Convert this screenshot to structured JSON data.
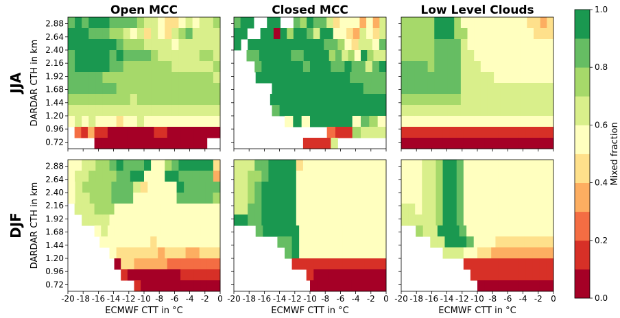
{
  "chart_data": {
    "type": "heatmap",
    "column_titles": [
      "Open MCC",
      "Closed MCC",
      "Low Level Clouds"
    ],
    "row_titles": [
      "JJA",
      "DJF"
    ],
    "xlabel": "ECMWF CTT in °C",
    "ylabel": "DARDAR CTH in km",
    "x_ticks": [
      "-20",
      "-18",
      "-16",
      "-14",
      "-12",
      "-10",
      "-8",
      "-6",
      "-4",
      "-2",
      "0"
    ],
    "y_ticks": [
      "0.72",
      "0.96",
      "1.20",
      "1.44",
      "1.68",
      "1.92",
      "2.16",
      "2.40",
      "2.64",
      "2.88"
    ],
    "xlim": [
      -20,
      0
    ],
    "ylim": [
      0.6,
      3.0
    ],
    "colorbar": {
      "label": "Mixed fraction",
      "ticks": [
        "0.0",
        "0.2",
        "0.4",
        "0.6",
        "0.8",
        "1.0"
      ],
      "levels": [
        0.0,
        0.1,
        0.2,
        0.3,
        0.4,
        0.5,
        0.6,
        0.7,
        0.8,
        0.9,
        1.0
      ],
      "colors": [
        "#a50026",
        "#d73027",
        "#f46d43",
        "#fdae61",
        "#fee08b",
        "#ffffbf",
        "#d9ef8b",
        "#a6d96a",
        "#66bd63",
        "#1a9850"
      ]
    },
    "grid_encoding": "rows listed from top (CTH 2.88 km) to bottom (CTH 0.72 km); columns from CTT -20 °C to 0 °C; each character is the colour bin 0-9 of the mixed fraction, '.' = no data",
    "panels": [
      {
        "row": "JJA",
        "col": "Open MCC",
        "grid": [
          "8989998888766544565667",
          "9998887765646546786666",
          "9999999877766665666666",
          "8999998988887666666776",
          "8999998877777776666667",
          "8888877777777777777776",
          "8888888777777777777777",
          "7777777776777777777777",
          "6666666666666666666666",
          "5656555455655555555555",
          ".2131100000001100000000",
          "....00000000000000000.."
        ]
      },
      {
        "row": "JJA",
        "col": "Closed MCC",
        "grid": [
          "899..99..87988645553536",
          "99..9909799869955436546",
          "9.99999999999887546658",
          "..8899999889999786759766",
          "...8999999899988988689",
          "...999999999999988888",
          ".....999999999999888",
          ".....9999999999999999",
          ".....899999999999999",
          "......595999995875",
          "...........2117666",
          "..........11116......."
        ]
      },
      {
        "row": "JJA",
        "col": "Low Level Clouds",
        "grid": [
          "77777999755555555554434",
          "77777999775555555555444",
          "77777888865555555555555",
          "77777888866555555555555",
          "88887888866655555555555",
          "88888888866666555555555",
          "88888888866666666666666",
          "77777777766666666666666",
          "66666666666666666666666",
          "55555555555555555555555",
          "1111111111111111111111",
          "0000000000000000000000"
        ]
      },
      {
        "row": "DJF",
        "col": "Open MCC",
        "grid": [
          "5566778988895578999994",
          "5667777889955599888883",
          "567777888645555988888",
          "566777888555555888887",
          ".6667775555555555555555",
          "..66665555555555555555",
          "....5655555555555555555",
          ".....5555555545555555555",
          "......5444444344433444",
          ".......0443333322222222",
          "........100000000111111",
          "..........1000000000000"
        ]
      },
      {
        "row": "DJF",
        "col": "Closed MCC",
        "grid": [
          "6668899994555555555555",
          "6677899995555555555555",
          "6678999995555555555555",
          "6678999995555555555555",
          "6688999995555555555555",
          "9988999995555555555555",
          "...899999555555555555",
          "......889555555555555",
          ".......89555555555555",
          "........1111111111111",
          "..........10000000000",
          "...........00000000000"
        ]
      },
      {
        "row": "DJF",
        "col": "Low Level Clouds",
        "grid": [
          "5556679985555555555555",
          "5556679985555555555555",
          "5556679985555555555555",
          "5556679985555555555555",
          "6656679985555555555555",
          "6666679985555555555555",
          "..7669998555555555555",
          "....66999855544444444",
          "......6665544333333333",
          ".........1111111111111",
          "..........111111111111",
          "...........00000000000"
        ]
      }
    ]
  }
}
